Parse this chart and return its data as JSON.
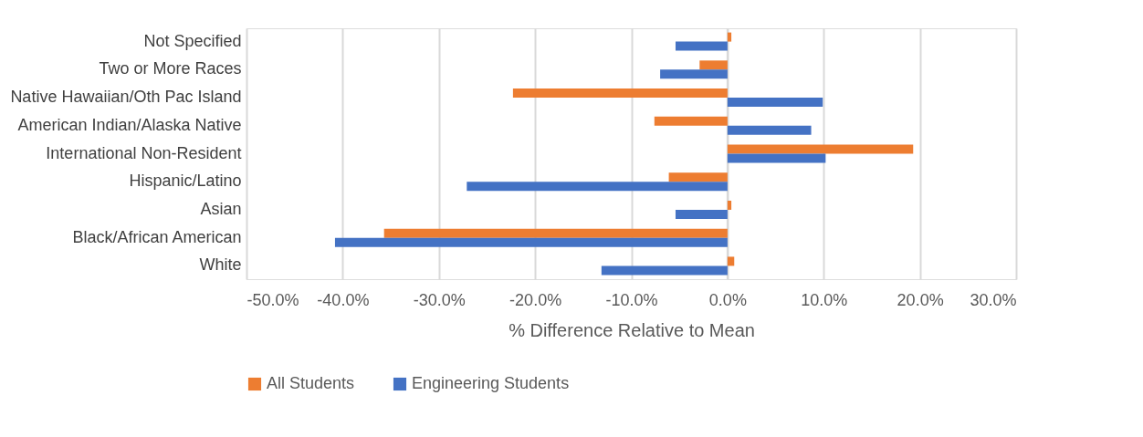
{
  "chart_data": {
    "type": "bar",
    "orientation": "horizontal",
    "xlabel": "% Difference Relative to Mean",
    "categories": [
      "Not Specified",
      "Two or More Races",
      "Native Hawaiian/Oth Pac Island",
      "American Indian/Alaska Native",
      "International Non-Resident",
      "Hispanic/Latino",
      "Asian",
      "Black/African American",
      "White"
    ],
    "series": [
      {
        "name": "All Students",
        "color": "#ed7d31",
        "values": [
          0.4,
          -2.9,
          -22.3,
          -7.6,
          19.3,
          -6.1,
          0.4,
          -35.7,
          0.7
        ]
      },
      {
        "name": "Engineering Students",
        "color": "#4472c4",
        "values": [
          -5.4,
          -7.0,
          9.9,
          8.7,
          10.2,
          -27.1,
          -5.4,
          -40.8,
          -13.1
        ]
      }
    ],
    "xlim": [
      -50,
      30
    ],
    "xticks": [
      {
        "value": -50,
        "label": "-50.0%"
      },
      {
        "value": -40,
        "label": "-40.0%"
      },
      {
        "value": -30,
        "label": "-30.0%"
      },
      {
        "value": -20,
        "label": "-20.0%"
      },
      {
        "value": -10,
        "label": "-10.0%"
      },
      {
        "value": 0,
        "label": "0.0%"
      },
      {
        "value": 10,
        "label": "10.0%"
      },
      {
        "value": 20,
        "label": "20.0%"
      },
      {
        "value": 30,
        "label": "30.0%"
      }
    ],
    "grid": "x",
    "legend": "bottom"
  }
}
